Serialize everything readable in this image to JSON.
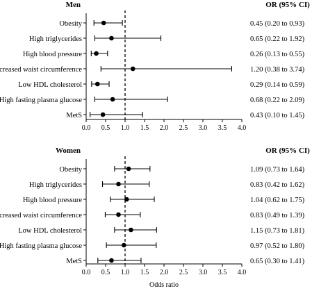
{
  "chart_data": [
    {
      "type": "forest",
      "title": "Men",
      "or_header": "OR (95% CI)",
      "xlim": [
        0,
        4
      ],
      "xticks": [
        "0.0",
        "0.5",
        "1.0",
        "1.5",
        "2.0",
        "2.5",
        "3.0",
        "3.5",
        "4.0"
      ],
      "reference_line": 1.0,
      "rows": [
        {
          "label": "Obesity",
          "or": 0.45,
          "lo": 0.2,
          "hi": 0.93,
          "text": "0.45 (0.20 to 0.93)"
        },
        {
          "label": "High triglycerides",
          "or": 0.65,
          "lo": 0.22,
          "hi": 1.92,
          "text": "0.65 (0.22 to 1.92)"
        },
        {
          "label": "High blood pressure",
          "or": 0.26,
          "lo": 0.13,
          "hi": 0.55,
          "text": "0.26 (0.13 to 0.55)"
        },
        {
          "label": "Increased waist circumference",
          "or": 1.2,
          "lo": 0.38,
          "hi": 3.74,
          "text": "1.20 (0.38 to 3.74)"
        },
        {
          "label": "Low HDL cholesterol",
          "or": 0.29,
          "lo": 0.14,
          "hi": 0.59,
          "text": "0.29 (0.14 to 0.59)"
        },
        {
          "label": "High fasting plasma glucose",
          "or": 0.68,
          "lo": 0.22,
          "hi": 2.09,
          "text": "0.68 (0.22 to 2.09)"
        },
        {
          "label": "MetS",
          "or": 0.43,
          "lo": 0.1,
          "hi": 1.45,
          "text": "0.43 (0.10 to 1.45)"
        }
      ]
    },
    {
      "type": "forest",
      "title": "Women",
      "or_header": "OR (95% CI)",
      "xlabel": "Odds ratio",
      "xlim": [
        0,
        4
      ],
      "xticks": [
        "0.0",
        "0.5",
        "1.0",
        "1.5",
        "2.0",
        "2.5",
        "3.0",
        "3.5",
        "4.0"
      ],
      "reference_line": 1.0,
      "rows": [
        {
          "label": "Obesity",
          "or": 1.09,
          "lo": 0.73,
          "hi": 1.64,
          "text": "1.09 (0.73 to 1.64)"
        },
        {
          "label": "High triglycerides",
          "or": 0.83,
          "lo": 0.42,
          "hi": 1.62,
          "text": "0.83 (0.42 to 1.62)"
        },
        {
          "label": "High blood pressure",
          "or": 1.04,
          "lo": 0.62,
          "hi": 1.75,
          "text": "1.04 (0.62 to 1.75)"
        },
        {
          "label": "Increased waist circumference",
          "or": 0.83,
          "lo": 0.49,
          "hi": 1.39,
          "text": "0.83 (0.49 to 1.39)"
        },
        {
          "label": "Low HDL cholesterol",
          "or": 1.15,
          "lo": 0.73,
          "hi": 1.81,
          "text": "1.15 (0.73 to 1.81)"
        },
        {
          "label": "High fasting plasma glucose",
          "or": 0.97,
          "lo": 0.52,
          "hi": 1.8,
          "text": "0.97 (0.52 to 1.80)"
        },
        {
          "label": "MetS",
          "or": 0.65,
          "lo": 0.3,
          "hi": 1.41,
          "text": "0.65 (0.30 to 1.41)"
        }
      ]
    }
  ]
}
